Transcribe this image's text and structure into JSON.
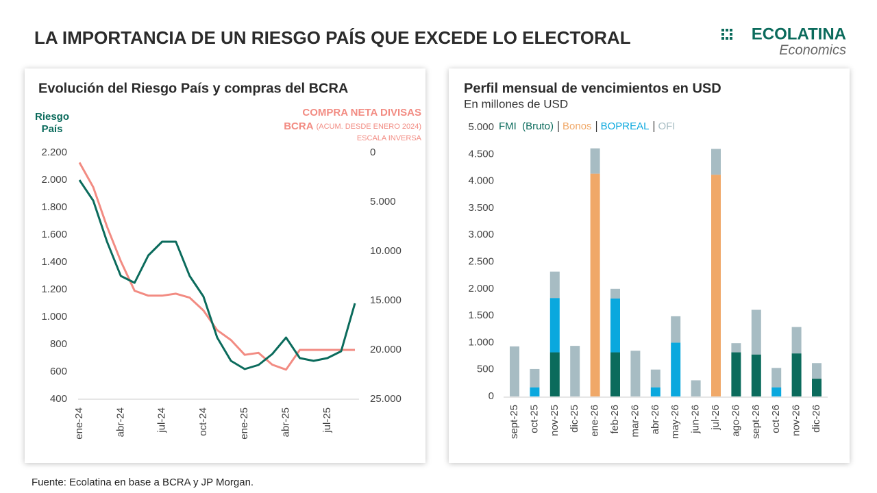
{
  "title": "LA IMPORTANCIA DE UN RIESGO PAÍS QUE EXCEDE LO ELECTORAL",
  "logo": {
    "name": "ECOLATINA",
    "tagline": "Economics"
  },
  "source": "Fuente: Ecolatina en base a BCRA y JP Morgan.",
  "chart_data": [
    {
      "type": "line",
      "title": "Evolución del Riesgo País y compras del BCRA",
      "y_label": "Riesgo País",
      "y2_label": [
        "COMPRA NETA DIVISAS",
        "BCRA"
      ],
      "y2_note": "(ACUM. DESDE ENERO 2024)",
      "y2_scale_note": "ESCALA INVERSA",
      "y2_inverted": true,
      "categories": [
        "ene-24",
        null,
        null,
        "abr-24",
        null,
        null,
        "jul-24",
        null,
        null,
        "oct-24",
        null,
        null,
        "ene-25",
        null,
        null,
        "abr-25",
        null,
        null,
        "jul-25",
        null,
        null
      ],
      "series": [
        {
          "name": "Riesgo País",
          "color": "#0b6b5c",
          "values": [
            2000,
            1850,
            1550,
            1300,
            1250,
            1450,
            1550,
            1550,
            1300,
            1150,
            850,
            680,
            620,
            650,
            730,
            850,
            700,
            680,
            700,
            750,
            1100
          ]
        },
        {
          "color": "#f28b82",
          "axis": "y2",
          "values": [
            1000,
            3500,
            7500,
            11000,
            14000,
            14500,
            14500,
            14300,
            14700,
            16000,
            18000,
            19000,
            20500,
            20300,
            21500,
            22000,
            20000,
            20000,
            20000,
            20000,
            20000
          ]
        }
      ],
      "ylim": [
        400,
        2200
      ],
      "yticks": [
        400,
        600,
        800,
        {
          "value": 1000,
          "label": "1.000"
        },
        {
          "value": 1200,
          "label": "1.200"
        },
        {
          "value": 1400,
          "label": "1.400"
        },
        {
          "value": 1600,
          "label": "1.600"
        },
        {
          "value": 1800,
          "label": "1.800"
        },
        {
          "value": 2000,
          "label": "2.000"
        },
        {
          "value": 2200,
          "label": "2.200"
        }
      ],
      "y2lim": [
        0,
        25000
      ],
      "y2ticks": [
        0,
        {
          "value": 5000,
          "label": "5.000"
        },
        {
          "value": 10000,
          "label": "10.000"
        },
        {
          "value": 15000,
          "label": "15.000"
        },
        {
          "value": 20000,
          "label": "20.000"
        },
        {
          "value": 25000,
          "label": "25.000"
        }
      ]
    },
    {
      "type": "stacked-bar",
      "title": "Perfil mensual de vencimientos en USD",
      "subtitle": "En millones de USD",
      "categories": [
        "sept-25",
        "oct-25",
        "nov-25",
        "dic-25",
        "ene-26",
        "feb-26",
        "mar-26",
        "abr-26",
        "may-26",
        "jun-26",
        "jul-26",
        "ago-26",
        "sept-26",
        "oct-26",
        "nov-26",
        "dic-26"
      ],
      "series": [
        {
          "name": "FMI  (Bruto)",
          "color": "#0b6b5c",
          "values": [
            0,
            0,
            820,
            0,
            0,
            820,
            0,
            0,
            0,
            0,
            0,
            820,
            780,
            0,
            800,
            330
          ]
        },
        {
          "name": "Bonos",
          "color": "#f0a868",
          "values": [
            0,
            0,
            0,
            0,
            4140,
            0,
            0,
            0,
            0,
            0,
            4120,
            0,
            0,
            0,
            0,
            0
          ]
        },
        {
          "name": "BOPREAL",
          "color": "#0aa8de",
          "values": [
            0,
            170,
            1010,
            0,
            0,
            1000,
            0,
            170,
            1000,
            0,
            0,
            0,
            0,
            170,
            0,
            0
          ]
        },
        {
          "name": "OFI",
          "color": "#a7bcc3",
          "values": [
            930,
            340,
            490,
            940,
            470,
            180,
            850,
            330,
            490,
            300,
            480,
            170,
            830,
            360,
            490,
            290
          ]
        }
      ],
      "ylim": [
        0,
        5000
      ],
      "yticks": [
        0,
        500,
        {
          "value": 1000,
          "label": "1.000"
        },
        {
          "value": 1500,
          "label": "1.500"
        },
        {
          "value": 2000,
          "label": "2.000"
        },
        {
          "value": 2500,
          "label": "2.500"
        },
        {
          "value": 3000,
          "label": "3.000"
        },
        {
          "value": 3500,
          "label": "3.500"
        },
        {
          "value": 4000,
          "label": "4.000"
        },
        {
          "value": 4500,
          "label": "4.500"
        },
        {
          "value": 5000,
          "label": "5.000"
        }
      ]
    }
  ]
}
